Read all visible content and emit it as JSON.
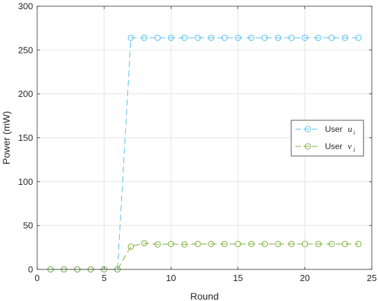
{
  "chart_data": {
    "type": "line",
    "title": "",
    "xlabel": "Round",
    "ylabel": "Power (mW)",
    "xlim": [
      0,
      25
    ],
    "ylim": [
      0,
      300
    ],
    "xticks": [
      0,
      5,
      10,
      15,
      20,
      25
    ],
    "yticks": [
      0,
      50,
      100,
      150,
      200,
      250,
      300
    ],
    "grid": true,
    "legend_position": "center-right",
    "x": [
      1,
      2,
      3,
      4,
      5,
      6,
      7,
      8,
      9,
      10,
      11,
      12,
      13,
      14,
      15,
      16,
      17,
      18,
      19,
      20,
      21,
      22,
      23,
      24
    ],
    "series": [
      {
        "name": "User",
        "symbol": "u",
        "subscript": "i",
        "color": "#4DBEEE",
        "values": [
          0,
          0,
          0,
          0,
          0,
          0,
          264,
          264,
          264,
          264,
          264,
          264,
          264,
          264,
          264,
          264,
          264,
          264,
          264,
          264,
          264,
          264,
          264,
          264
        ]
      },
      {
        "name": "User",
        "symbol": "v",
        "subscript": "i",
        "color": "#77AC30",
        "values": [
          0,
          0,
          0,
          0,
          0,
          0,
          26,
          30,
          28.5,
          29,
          28.5,
          29,
          29,
          29,
          29,
          29,
          29,
          29,
          29,
          29,
          29,
          29,
          29,
          29
        ]
      }
    ]
  }
}
